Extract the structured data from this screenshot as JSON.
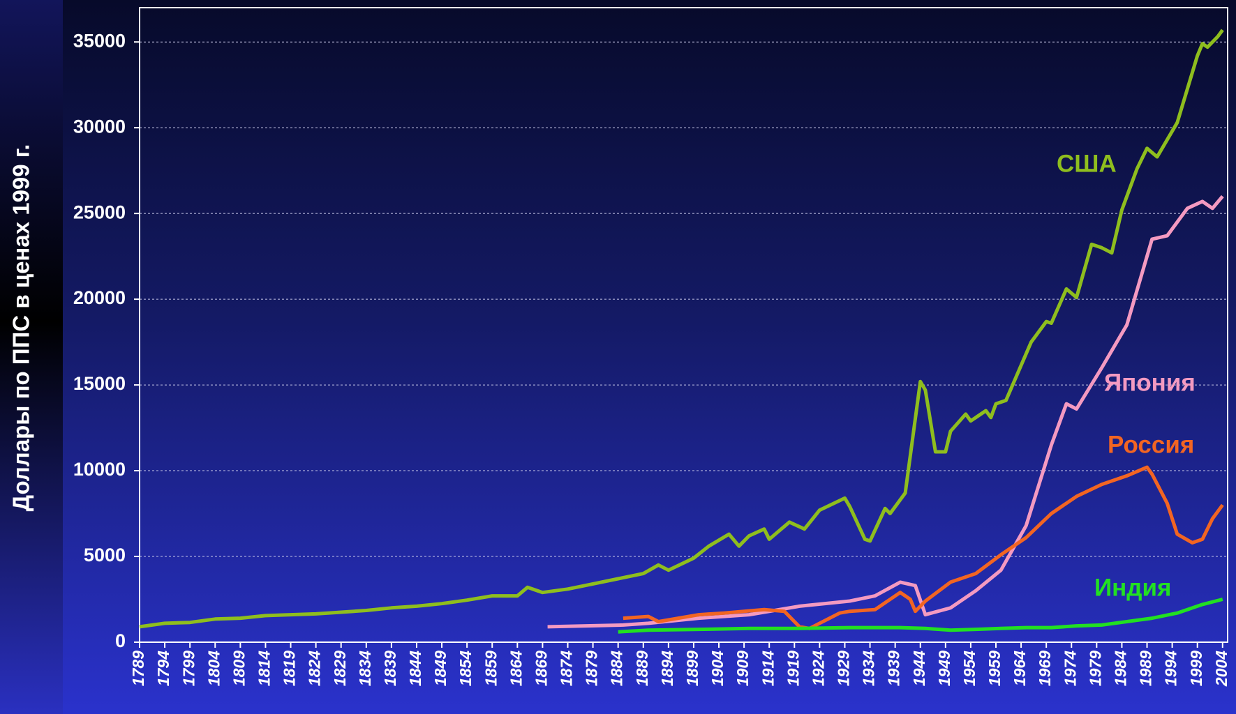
{
  "chart_data": {
    "type": "line",
    "ylabel": "Доллары по ППС в ценах 1999 г.",
    "xlim": [
      1789,
      2005
    ],
    "xticks": [
      1789,
      1794,
      1799,
      1804,
      1809,
      1814,
      1819,
      1824,
      1829,
      1834,
      1839,
      1844,
      1849,
      1854,
      1859,
      1864,
      1869,
      1874,
      1879,
      1884,
      1889,
      1894,
      1899,
      1904,
      1909,
      1914,
      1919,
      1924,
      1929,
      1934,
      1939,
      1944,
      1949,
      1954,
      1959,
      1964,
      1969,
      1974,
      1979,
      1984,
      1989,
      1994,
      1999,
      2004
    ],
    "ylim": [
      0,
      37000
    ],
    "yticks": [
      0,
      5000,
      10000,
      15000,
      20000,
      25000,
      30000,
      35000
    ],
    "grid": true,
    "series": [
      {
        "name": "США",
        "color": "#8fbe1e",
        "x": [
          1789,
          1794,
          1799,
          1804,
          1809,
          1814,
          1819,
          1824,
          1829,
          1834,
          1839,
          1844,
          1849,
          1854,
          1859,
          1864,
          1866,
          1869,
          1874,
          1879,
          1884,
          1889,
          1892,
          1894,
          1899,
          1902,
          1906,
          1908,
          1910,
          1913,
          1914,
          1918,
          1921,
          1924,
          1929,
          1930,
          1933,
          1934,
          1937,
          1938,
          1941,
          1944,
          1945,
          1947,
          1949,
          1950,
          1953,
          1954,
          1957,
          1958,
          1959,
          1961,
          1966,
          1969,
          1970,
          1973,
          1975,
          1978,
          1980,
          1982,
          1984,
          1987,
          1989,
          1991,
          1995,
          1999,
          2000,
          2001,
          2003,
          2004
        ],
        "values": [
          900,
          1100,
          1150,
          1350,
          1400,
          1550,
          1600,
          1650,
          1750,
          1850,
          2000,
          2100,
          2250,
          2450,
          2700,
          2700,
          3200,
          2900,
          3100,
          3400,
          3700,
          4000,
          4500,
          4200,
          4900,
          5600,
          6300,
          5600,
          6200,
          6600,
          6000,
          7000,
          6600,
          7700,
          8400,
          7900,
          6000,
          5900,
          7800,
          7500,
          8700,
          15200,
          14700,
          11100,
          11100,
          12300,
          13300,
          12900,
          13500,
          13100,
          13900,
          14100,
          17500,
          18700,
          18600,
          20600,
          20100,
          23200,
          23000,
          22700,
          25200,
          27600,
          28800,
          28300,
          30300,
          34200,
          34900,
          34700,
          35300,
          35700
        ]
      },
      {
        "name": "Япония",
        "color": "#f49ac1",
        "x": [
          1870,
          1885,
          1890,
          1900,
          1910,
          1920,
          1930,
          1935,
          1940,
          1943,
          1945,
          1950,
          1955,
          1960,
          1965,
          1970,
          1973,
          1975,
          1980,
          1985,
          1990,
          1993,
          1997,
          2000,
          2002,
          2004
        ],
        "values": [
          900,
          1000,
          1100,
          1400,
          1600,
          2100,
          2400,
          2700,
          3500,
          3300,
          1600,
          2000,
          3000,
          4200,
          6800,
          11500,
          13900,
          13600,
          16000,
          18500,
          23500,
          23700,
          25300,
          25700,
          25300,
          26000
        ]
      },
      {
        "name": "Россия",
        "color": "#f26522",
        "x": [
          1885,
          1890,
          1892,
          1900,
          1905,
          1913,
          1917,
          1920,
          1922,
          1928,
          1930,
          1935,
          1940,
          1942,
          1943,
          1945,
          1950,
          1955,
          1960,
          1965,
          1970,
          1975,
          1980,
          1985,
          1989,
          1990,
          1993,
          1995,
          1998,
          2000,
          2002,
          2004
        ],
        "values": [
          1400,
          1500,
          1200,
          1600,
          1700,
          1900,
          1800,
          900,
          800,
          1700,
          1800,
          1900,
          2900,
          2500,
          1800,
          2400,
          3500,
          4000,
          5100,
          6100,
          7500,
          8500,
          9200,
          9700,
          10200,
          9800,
          8100,
          6300,
          5800,
          6000,
          7200,
          8000
        ]
      },
      {
        "name": "Индия",
        "color": "#22e022",
        "x": [
          1884,
          1890,
          1900,
          1910,
          1920,
          1930,
          1940,
          1945,
          1950,
          1955,
          1960,
          1965,
          1970,
          1975,
          1980,
          1985,
          1990,
          1995,
          2000,
          2004
        ],
        "values": [
          600,
          700,
          750,
          800,
          800,
          850,
          850,
          800,
          700,
          750,
          800,
          850,
          850,
          950,
          1000,
          1200,
          1400,
          1700,
          2200,
          2500
        ]
      }
    ]
  }
}
